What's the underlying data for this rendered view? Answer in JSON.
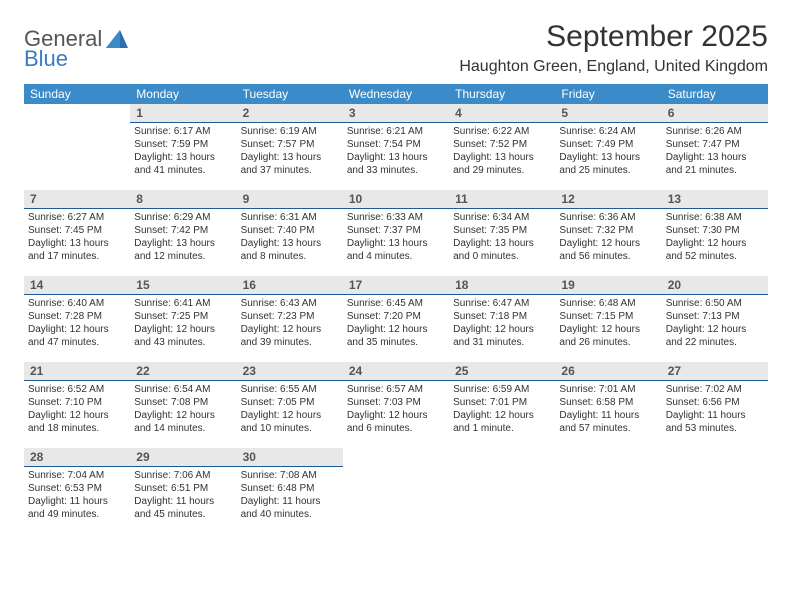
{
  "logo": {
    "general": "General",
    "blue": "Blue"
  },
  "title": "September 2025",
  "location": "Haughton Green, England, United Kingdom",
  "header_bg": "#3b8bc8",
  "daynum_bg": "#e8e8e8",
  "daynum_border": "#1e5a96",
  "weekdays": [
    "Sunday",
    "Monday",
    "Tuesday",
    "Wednesday",
    "Thursday",
    "Friday",
    "Saturday"
  ],
  "weeks": [
    [
      null,
      {
        "n": 1,
        "sr": "6:17 AM",
        "ss": "7:59 PM",
        "dl": "Daylight: 13 hours and 41 minutes."
      },
      {
        "n": 2,
        "sr": "6:19 AM",
        "ss": "7:57 PM",
        "dl": "Daylight: 13 hours and 37 minutes."
      },
      {
        "n": 3,
        "sr": "6:21 AM",
        "ss": "7:54 PM",
        "dl": "Daylight: 13 hours and 33 minutes."
      },
      {
        "n": 4,
        "sr": "6:22 AM",
        "ss": "7:52 PM",
        "dl": "Daylight: 13 hours and 29 minutes."
      },
      {
        "n": 5,
        "sr": "6:24 AM",
        "ss": "7:49 PM",
        "dl": "Daylight: 13 hours and 25 minutes."
      },
      {
        "n": 6,
        "sr": "6:26 AM",
        "ss": "7:47 PM",
        "dl": "Daylight: 13 hours and 21 minutes."
      }
    ],
    [
      {
        "n": 7,
        "sr": "6:27 AM",
        "ss": "7:45 PM",
        "dl": "Daylight: 13 hours and 17 minutes."
      },
      {
        "n": 8,
        "sr": "6:29 AM",
        "ss": "7:42 PM",
        "dl": "Daylight: 13 hours and 12 minutes."
      },
      {
        "n": 9,
        "sr": "6:31 AM",
        "ss": "7:40 PM",
        "dl": "Daylight: 13 hours and 8 minutes."
      },
      {
        "n": 10,
        "sr": "6:33 AM",
        "ss": "7:37 PM",
        "dl": "Daylight: 13 hours and 4 minutes."
      },
      {
        "n": 11,
        "sr": "6:34 AM",
        "ss": "7:35 PM",
        "dl": "Daylight: 13 hours and 0 minutes."
      },
      {
        "n": 12,
        "sr": "6:36 AM",
        "ss": "7:32 PM",
        "dl": "Daylight: 12 hours and 56 minutes."
      },
      {
        "n": 13,
        "sr": "6:38 AM",
        "ss": "7:30 PM",
        "dl": "Daylight: 12 hours and 52 minutes."
      }
    ],
    [
      {
        "n": 14,
        "sr": "6:40 AM",
        "ss": "7:28 PM",
        "dl": "Daylight: 12 hours and 47 minutes."
      },
      {
        "n": 15,
        "sr": "6:41 AM",
        "ss": "7:25 PM",
        "dl": "Daylight: 12 hours and 43 minutes."
      },
      {
        "n": 16,
        "sr": "6:43 AM",
        "ss": "7:23 PM",
        "dl": "Daylight: 12 hours and 39 minutes."
      },
      {
        "n": 17,
        "sr": "6:45 AM",
        "ss": "7:20 PM",
        "dl": "Daylight: 12 hours and 35 minutes."
      },
      {
        "n": 18,
        "sr": "6:47 AM",
        "ss": "7:18 PM",
        "dl": "Daylight: 12 hours and 31 minutes."
      },
      {
        "n": 19,
        "sr": "6:48 AM",
        "ss": "7:15 PM",
        "dl": "Daylight: 12 hours and 26 minutes."
      },
      {
        "n": 20,
        "sr": "6:50 AM",
        "ss": "7:13 PM",
        "dl": "Daylight: 12 hours and 22 minutes."
      }
    ],
    [
      {
        "n": 21,
        "sr": "6:52 AM",
        "ss": "7:10 PM",
        "dl": "Daylight: 12 hours and 18 minutes."
      },
      {
        "n": 22,
        "sr": "6:54 AM",
        "ss": "7:08 PM",
        "dl": "Daylight: 12 hours and 14 minutes."
      },
      {
        "n": 23,
        "sr": "6:55 AM",
        "ss": "7:05 PM",
        "dl": "Daylight: 12 hours and 10 minutes."
      },
      {
        "n": 24,
        "sr": "6:57 AM",
        "ss": "7:03 PM",
        "dl": "Daylight: 12 hours and 6 minutes."
      },
      {
        "n": 25,
        "sr": "6:59 AM",
        "ss": "7:01 PM",
        "dl": "Daylight: 12 hours and 1 minute."
      },
      {
        "n": 26,
        "sr": "7:01 AM",
        "ss": "6:58 PM",
        "dl": "Daylight: 11 hours and 57 minutes."
      },
      {
        "n": 27,
        "sr": "7:02 AM",
        "ss": "6:56 PM",
        "dl": "Daylight: 11 hours and 53 minutes."
      }
    ],
    [
      {
        "n": 28,
        "sr": "7:04 AM",
        "ss": "6:53 PM",
        "dl": "Daylight: 11 hours and 49 minutes."
      },
      {
        "n": 29,
        "sr": "7:06 AM",
        "ss": "6:51 PM",
        "dl": "Daylight: 11 hours and 45 minutes."
      },
      {
        "n": 30,
        "sr": "7:08 AM",
        "ss": "6:48 PM",
        "dl": "Daylight: 11 hours and 40 minutes."
      },
      null,
      null,
      null,
      null
    ]
  ]
}
